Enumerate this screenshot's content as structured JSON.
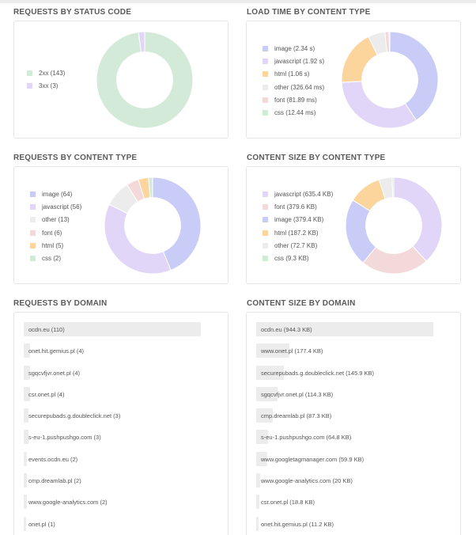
{
  "colors": {
    "image": "#c8ccf6",
    "javascript": "#e1d6f7",
    "html": "#fcd59d",
    "other": "#ececec",
    "font": "#f3d9d9",
    "css": "#d4ead9",
    "2xx": "#d4ead9",
    "3xx": "#e1d6f7"
  },
  "chart_data": [
    {
      "type": "pie",
      "title": "REQUESTS BY STATUS CODE",
      "legend": [
        "2xx (143)",
        "3xx (3)"
      ],
      "slices": [
        {
          "key": "2xx",
          "value": 143
        },
        {
          "key": "3xx",
          "value": 3
        }
      ]
    },
    {
      "type": "pie",
      "title": "LOAD TIME BY CONTENT TYPE",
      "legend": [
        "image (2.34 s)",
        "javascript (1.92 s)",
        "html (1.06 s)",
        "other (326.64 ms)",
        "font (81.89 ms)",
        "css (12.44 ms)"
      ],
      "slices": [
        {
          "key": "image",
          "value": 2340
        },
        {
          "key": "javascript",
          "value": 1920
        },
        {
          "key": "html",
          "value": 1060
        },
        {
          "key": "other",
          "value": 326.64
        },
        {
          "key": "font",
          "value": 81.89
        },
        {
          "key": "css",
          "value": 12.44
        }
      ]
    },
    {
      "type": "pie",
      "title": "REQUESTS BY CONTENT TYPE",
      "legend": [
        "image (64)",
        "javascript (56)",
        "other (13)",
        "font (6)",
        "html (5)",
        "css (2)"
      ],
      "slices": [
        {
          "key": "image",
          "value": 64
        },
        {
          "key": "javascript",
          "value": 56
        },
        {
          "key": "other",
          "value": 13
        },
        {
          "key": "font",
          "value": 6
        },
        {
          "key": "html",
          "value": 5
        },
        {
          "key": "css",
          "value": 2
        }
      ]
    },
    {
      "type": "pie",
      "title": "CONTENT SIZE BY CONTENT TYPE",
      "legend": [
        "javascript (635.4 KB)",
        "font (379.6 KB)",
        "image (379.4 KB)",
        "html (187.2 KB)",
        "other (72.7 KB)",
        "css (9.3 KB)"
      ],
      "slices": [
        {
          "key": "javascript",
          "value": 635.4
        },
        {
          "key": "font",
          "value": 379.6
        },
        {
          "key": "image",
          "value": 379.4
        },
        {
          "key": "html",
          "value": 187.2
        },
        {
          "key": "other",
          "value": 72.7
        },
        {
          "key": "css",
          "value": 9.3
        }
      ]
    },
    {
      "type": "bar",
      "title": "REQUESTS BY DOMAIN",
      "labels": [
        "ocdn.eu (110)",
        "onet.hit.gemius.pl (4)",
        "sgqcvfjvr.onet.pl (4)",
        "csr.onet.pl (4)",
        "securepubads.g.doubleclick.net (3)",
        "s-eu-1.pushpushgo.com (3)",
        "events.ocdn.eu (2)",
        "cmp.dreamlab.pl (2)",
        "www.google-analytics.com (2)",
        "onet.pl (1)"
      ],
      "values": [
        110,
        4,
        4,
        4,
        3,
        3,
        2,
        2,
        2,
        1
      ]
    },
    {
      "type": "bar",
      "title": "CONTENT SIZE BY DOMAIN",
      "labels": [
        "ocdn.eu (944.3 KB)",
        "www.onet.pl (177.4 KB)",
        "securepubads.g.doubleclick.net (145.9 KB)",
        "sgqcvfjvr.onet.pl (114.3 KB)",
        "cmp.dreamlab.pl (87.3 KB)",
        "s-eu-1.pushpushgo.com (64.8 KB)",
        "www.googletagmanager.com (59.9 KB)",
        "www.google-analytics.com (20 KB)",
        "csr.onet.pl (18.8 KB)",
        "onet.hit.gemius.pl (11.2 KB)"
      ],
      "values": [
        944.3,
        177.4,
        145.9,
        114.3,
        87.3,
        64.8,
        59.9,
        20,
        18.8,
        11.2
      ]
    }
  ]
}
